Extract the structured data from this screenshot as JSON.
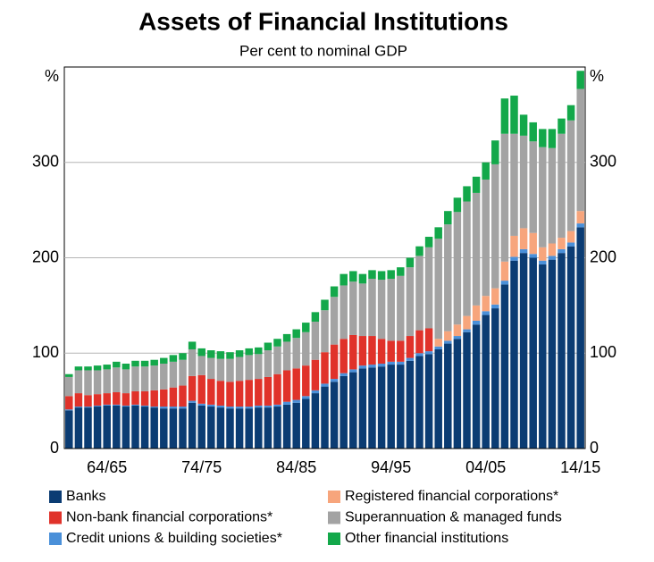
{
  "chart_data": {
    "type": "stacked_bar",
    "title": "Assets of Financial Institutions",
    "subtitle": "Per cent to nominal GDP",
    "ylabel": "%",
    "categories": [
      null,
      null,
      null,
      null,
      "64/65",
      null,
      null,
      null,
      null,
      null,
      null,
      null,
      null,
      null,
      "74/75",
      null,
      null,
      null,
      null,
      null,
      null,
      null,
      null,
      null,
      "84/85",
      null,
      null,
      null,
      null,
      null,
      null,
      null,
      null,
      null,
      "94/95",
      null,
      null,
      null,
      null,
      null,
      null,
      null,
      null,
      null,
      "04/05",
      null,
      null,
      null,
      null,
      null,
      null,
      null,
      null,
      null,
      "14/15"
    ],
    "series": [
      {
        "name": "Banks",
        "color": "#0b3c73",
        "values": [
          40,
          43,
          43,
          44,
          45,
          45,
          44,
          45,
          44,
          43,
          42,
          42,
          42,
          48,
          45,
          44,
          43,
          42,
          42,
          42,
          43,
          43,
          44,
          46,
          48,
          52,
          58,
          65,
          70,
          76,
          80,
          84,
          85,
          86,
          88,
          88,
          92,
          97,
          99,
          104,
          110,
          115,
          122,
          130,
          140,
          147,
          172,
          197,
          205,
          200,
          193,
          198,
          205,
          212,
          232
        ]
      },
      {
        "name": "Credit unions & building societies*",
        "color": "#4a90d9",
        "values": [
          1,
          1,
          1,
          1,
          1,
          1,
          1,
          1,
          1,
          1,
          2,
          2,
          2,
          2,
          2,
          2,
          2,
          2,
          2,
          2,
          2,
          2,
          2,
          3,
          3,
          3,
          3,
          3,
          3,
          3,
          3,
          3,
          3,
          3,
          3,
          3,
          3,
          3,
          3,
          3,
          3,
          3,
          3,
          4,
          4,
          4,
          4,
          4,
          4,
          4,
          4,
          4,
          4,
          4,
          4
        ]
      },
      {
        "name": "Non-bank financial corporations*",
        "color": "#e0322a",
        "values": [
          14,
          14,
          12,
          12,
          12,
          13,
          13,
          14,
          15,
          17,
          18,
          20,
          22,
          26,
          30,
          27,
          26,
          26,
          27,
          28,
          28,
          30,
          32,
          33,
          33,
          32,
          32,
          33,
          36,
          36,
          36,
          31,
          30,
          26,
          22,
          22,
          23,
          24,
          24,
          0,
          0,
          0,
          0,
          0,
          0,
          0,
          0,
          0,
          0,
          0,
          0,
          0,
          0,
          0,
          0
        ]
      },
      {
        "name": "Registered financial corporations*",
        "color": "#f7a57c",
        "values": [
          0,
          0,
          0,
          0,
          0,
          0,
          0,
          0,
          0,
          0,
          0,
          0,
          0,
          0,
          0,
          0,
          0,
          0,
          0,
          0,
          0,
          0,
          0,
          0,
          0,
          0,
          0,
          0,
          0,
          0,
          0,
          0,
          0,
          0,
          0,
          0,
          0,
          0,
          0,
          8,
          10,
          12,
          14,
          16,
          16,
          17,
          20,
          22,
          22,
          22,
          14,
          13,
          12,
          12,
          13
        ]
      },
      {
        "name": "Superannuation & managed funds",
        "color": "#a3a3a3",
        "values": [
          20,
          24,
          26,
          25,
          25,
          26,
          25,
          26,
          26,
          26,
          27,
          27,
          27,
          28,
          20,
          22,
          23,
          24,
          25,
          26,
          26,
          28,
          29,
          30,
          32,
          35,
          40,
          44,
          50,
          56,
          56,
          55,
          60,
          62,
          65,
          68,
          72,
          78,
          85,
          105,
          112,
          118,
          120,
          118,
          122,
          130,
          134,
          107,
          97,
          96,
          105,
          100,
          109,
          116,
          128
        ]
      },
      {
        "name": "Other financial institutions",
        "color": "#13a84a",
        "values": [
          3,
          4,
          4,
          5,
          5,
          6,
          6,
          6,
          6,
          6,
          6,
          7,
          7,
          8,
          8,
          8,
          8,
          7,
          7,
          7,
          7,
          8,
          8,
          8,
          9,
          10,
          10,
          11,
          11,
          12,
          11,
          10,
          9,
          9,
          9,
          9,
          10,
          10,
          11,
          12,
          14,
          15,
          16,
          17,
          18,
          25,
          37,
          40,
          22,
          20,
          19,
          20,
          16,
          16,
          19
        ]
      }
    ],
    "ylim": [
      0,
      400
    ],
    "yticks": [
      0,
      100,
      200,
      300
    ],
    "grid": true
  }
}
